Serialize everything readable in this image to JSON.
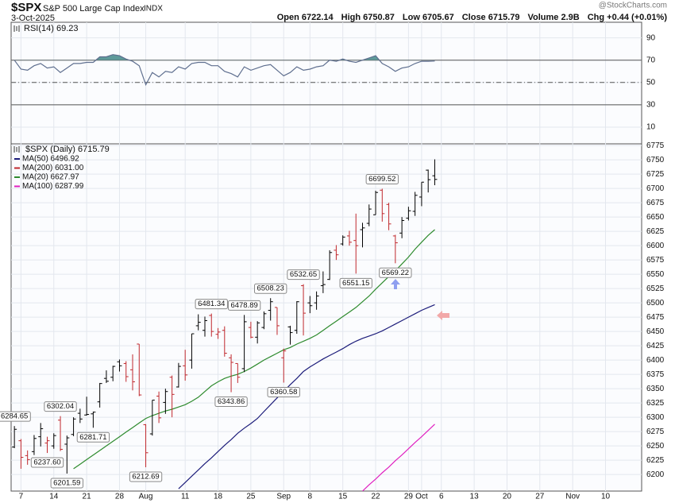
{
  "header": {
    "symbol": "$SPX",
    "name": "S&P 500 Large Cap Index",
    "exchange": "INDX",
    "date": "3-Oct-2025",
    "watermark": "@StockCharts.com",
    "quote": [
      "Open 6722.14",
      "High 6750.87",
      "Low 6705.67",
      "Close 6715.79",
      "Volume 2.9B",
      "Chg +0.44 (+0.01%)"
    ]
  },
  "chart_data": [
    {
      "type": "line",
      "label": "RSI(14) 69.23",
      "color": "#5f6f8f",
      "fill": "#5e9a9a",
      "ylim": [
        -5,
        104
      ],
      "yticks": [
        10,
        30,
        50,
        70,
        90
      ],
      "levels": {
        "solid": [
          70,
          30
        ],
        "dashed": [
          50
        ]
      },
      "overbought": 70,
      "values": [
        70,
        62,
        61,
        65,
        67,
        63,
        64,
        59,
        63,
        67,
        67,
        68,
        68,
        73,
        73,
        75,
        74,
        71,
        69,
        65,
        48,
        59,
        55,
        60,
        59,
        64,
        62,
        67,
        68,
        68,
        65,
        65,
        60,
        58,
        55,
        64,
        61,
        63,
        65,
        66,
        61,
        56,
        59,
        64,
        61,
        62,
        64,
        65,
        70,
        69,
        71,
        69,
        68,
        70,
        72,
        74,
        67,
        64,
        60,
        63,
        64,
        67,
        69,
        69,
        69.23
      ]
    },
    {
      "type": "ohlc",
      "label": "$SPX (Daily) 6715.79",
      "up_color": "#000000",
      "down_color": "#c0282d",
      "ylim": [
        6171,
        6778
      ],
      "yticks": [
        6200,
        6225,
        6250,
        6275,
        6300,
        6325,
        6350,
        6375,
        6400,
        6425,
        6450,
        6475,
        6500,
        6525,
        6550,
        6575,
        6600,
        6625,
        6650,
        6675,
        6700,
        6725,
        6750,
        6775
      ],
      "grid": true,
      "xlim": [
        -0.5,
        95.5
      ],
      "xticks": [
        {
          "value": 1,
          "label": "7"
        },
        {
          "value": 6,
          "label": "14"
        },
        {
          "value": 11,
          "label": "21"
        },
        {
          "value": 16,
          "label": "28"
        },
        {
          "value": 20,
          "label": "Aug"
        },
        {
          "value": 26,
          "label": "11"
        },
        {
          "value": 31,
          "label": "18"
        },
        {
          "value": 36,
          "label": "25"
        },
        {
          "value": 41,
          "label": "Sep"
        },
        {
          "value": 45,
          "label": "8"
        },
        {
          "value": 50,
          "label": "15"
        },
        {
          "value": 55,
          "label": "22"
        },
        {
          "value": 60,
          "label": "29"
        },
        {
          "value": 62,
          "label": "Oct"
        },
        {
          "value": 65,
          "label": "6"
        },
        {
          "value": 70,
          "label": "13"
        },
        {
          "value": 75,
          "label": "20"
        },
        {
          "value": 80,
          "label": "27"
        },
        {
          "value": 85,
          "label": "Nov"
        },
        {
          "value": 90,
          "label": "10"
        }
      ],
      "open": [
        6248,
        6259,
        6233,
        6240,
        6266,
        6255,
        6250,
        6295,
        6253,
        6270,
        6307,
        6304,
        6306,
        6327,
        6368,
        6370,
        6397,
        6394,
        6383,
        6428,
        6287,
        6271,
        6337,
        6326,
        6370,
        6353,
        6390,
        6400,
        6460,
        6452,
        6478,
        6445,
        6452,
        6404,
        6394,
        6385,
        6457,
        6440,
        6457,
        6487,
        6492,
        6404,
        6458,
        6452,
        6530,
        6500,
        6500,
        6530,
        6541,
        6592,
        6603,
        6617,
        6609,
        6628,
        6639,
        6654,
        6697,
        6672,
        6617,
        6622,
        6648,
        6660,
        6685,
        6732,
        6722.14
      ],
      "high": [
        6284.65,
        6262,
        6242,
        6269,
        6290,
        6266,
        6272,
        6302.04,
        6268,
        6300,
        6315,
        6336,
        6310,
        6360,
        6382,
        6390,
        6401,
        6398,
        6410,
        6428,
        6288,
        6330,
        6345,
        6350,
        6373,
        6395,
        6418,
        6446,
        6480,
        6476,
        6481.34,
        6456,
        6459,
        6410,
        6394,
        6478.89,
        6467,
        6468,
        6485,
        6508.23,
        6492,
        6420,
        6460,
        6503,
        6532.65,
        6512,
        6520,
        6555,
        6592,
        6601,
        6618,
        6626,
        6656,
        6640,
        6672,
        6696,
        6699.52,
        6675,
        6619,
        6650,
        6668,
        6694,
        6711,
        6733,
        6750.87
      ],
      "low": [
        6246,
        6210,
        6217,
        6234,
        6249,
        6237.6,
        6245,
        6241,
        6201.59,
        6267,
        6290,
        6303,
        6281.71,
        6317,
        6360,
        6363,
        6380,
        6362,
        6347,
        6337,
        6212.69,
        6268,
        6290,
        6306,
        6300,
        6352,
        6364,
        6385,
        6452,
        6441,
        6441,
        6437,
        6406,
        6343.86,
        6360,
        6379,
        6438,
        6429,
        6454,
        6469,
        6444,
        6360.58,
        6427,
        6446,
        6443,
        6482,
        6488,
        6517,
        6540,
        6575,
        6600,
        6600,
        6551.15,
        6597,
        6634,
        6654,
        6642,
        6627,
        6569.22,
        6613,
        6644,
        6652,
        6669,
        6693,
        6705.67
      ],
      "close": [
        6279,
        6230,
        6226,
        6263,
        6280,
        6259,
        6268,
        6244,
        6264,
        6297,
        6297,
        6305,
        6309,
        6359,
        6363,
        6389,
        6390,
        6371,
        6362,
        6339,
        6238,
        6330,
        6299,
        6345,
        6340,
        6389,
        6374,
        6446,
        6466,
        6469,
        6450,
        6449,
        6412,
        6396,
        6370,
        6467,
        6440,
        6465,
        6481,
        6502,
        6460,
        6416,
        6448,
        6502,
        6482,
        6495,
        6512,
        6532,
        6588,
        6584,
        6615,
        6606,
        6600,
        6631,
        6664,
        6693,
        6656,
        6638,
        6605,
        6644,
        6661,
        6688,
        6711,
        6715.35,
        6715.79
      ],
      "annotations": [
        {
          "x": 0,
          "value": 6284.65,
          "label": "6284.65"
        },
        {
          "x": 7,
          "value": 6302.04,
          "label": "6302.04"
        },
        {
          "x": 5,
          "value": 6237.6,
          "label": "6237.60"
        },
        {
          "x": 8,
          "value": 6201.59,
          "label": "6201.59"
        },
        {
          "x": 12,
          "value": 6281.71,
          "label": "6281.71"
        },
        {
          "x": 20,
          "value": 6212.69,
          "label": "6212.69"
        },
        {
          "x": 30,
          "value": 6481.34,
          "label": "6481.34"
        },
        {
          "x": 35,
          "value": 6478.89,
          "label": "6478.89"
        },
        {
          "x": 33,
          "value": 6343.86,
          "label": "6343.86"
        },
        {
          "x": 39,
          "value": 6508.23,
          "label": "6508.23"
        },
        {
          "x": 41,
          "value": 6360.58,
          "label": "6360.58"
        },
        {
          "x": 44,
          "value": 6532.65,
          "label": "6532.65"
        },
        {
          "x": 52,
          "value": 6551.15,
          "label": "6551.15"
        },
        {
          "x": 56,
          "value": 6699.52,
          "label": "6699.52"
        },
        {
          "x": 58,
          "value": 6569.22,
          "label": "6569.22"
        }
      ],
      "series": [
        {
          "name": "MA(50) 6496.92",
          "color": "#1c1c7a",
          "values": [
            null,
            null,
            null,
            null,
            null,
            null,
            null,
            null,
            null,
            null,
            null,
            null,
            null,
            null,
            null,
            null,
            null,
            null,
            null,
            null,
            null,
            null,
            null,
            null,
            null,
            6175,
            6186,
            6197,
            6208,
            6219,
            6229,
            6240,
            6251,
            6261,
            6272,
            6281,
            6289,
            6298,
            6310,
            6322,
            6334,
            6345,
            6357,
            6368,
            6380,
            6388,
            6395,
            6402,
            6408,
            6414,
            6420,
            6427,
            6433,
            6438,
            6442,
            6446,
            6451,
            6457,
            6463,
            6469,
            6475,
            6481,
            6487,
            6492,
            6496.92
          ]
        },
        {
          "name": "MA(200) 6031.00",
          "color": "#c0282d",
          "values": []
        },
        {
          "name": "MA(20) 6627.97",
          "color": "#2e8b2e",
          "values": [
            null,
            null,
            null,
            null,
            null,
            null,
            null,
            null,
            null,
            6210,
            6218,
            6226,
            6234,
            6242,
            6250,
            6258,
            6266,
            6274,
            6282,
            6290,
            6298,
            6303,
            6307,
            6311,
            6314,
            6318,
            6322,
            6328,
            6335,
            6345,
            6355,
            6362,
            6368,
            6372,
            6375,
            6380,
            6386,
            6393,
            6400,
            6406,
            6412,
            6418,
            6422,
            6428,
            6433,
            6438,
            6444,
            6452,
            6460,
            6468,
            6476,
            6484,
            6492,
            6502,
            6512,
            6524,
            6535,
            6546,
            6556,
            6568,
            6580,
            6594,
            6606,
            6618,
            6627.97
          ]
        },
        {
          "name": "MA(100) 6287.99",
          "color": "#e020c0",
          "values": [
            null,
            null,
            null,
            null,
            null,
            null,
            null,
            null,
            null,
            null,
            null,
            null,
            null,
            null,
            null,
            null,
            null,
            null,
            null,
            null,
            null,
            null,
            null,
            null,
            null,
            null,
            null,
            null,
            null,
            null,
            null,
            null,
            null,
            null,
            null,
            null,
            null,
            null,
            null,
            null,
            null,
            null,
            null,
            null,
            null,
            null,
            null,
            null,
            null,
            null,
            null,
            null,
            null,
            6171,
            6182,
            6192,
            6203,
            6213,
            6224,
            6234,
            6245,
            6256,
            6266,
            6277,
            6287.99
          ]
        }
      ]
    }
  ]
}
